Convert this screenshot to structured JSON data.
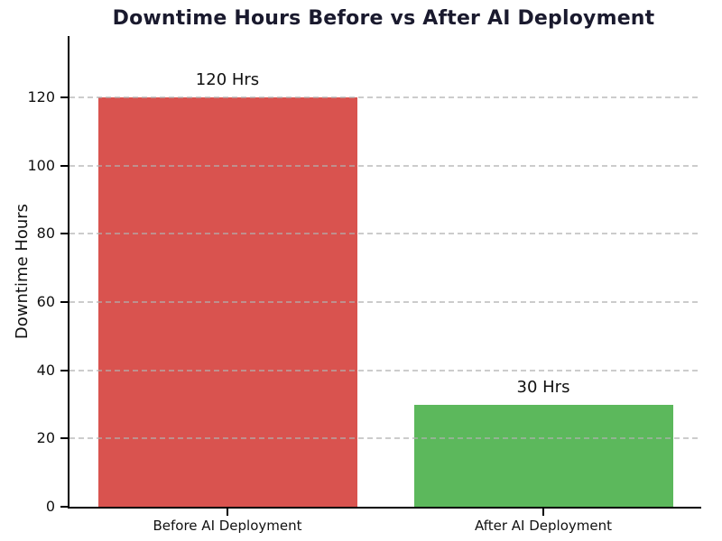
{
  "chart_data": {
    "type": "bar",
    "title": "Downtime Hours Before vs After AI Deployment",
    "categories": [
      "Before AI Deployment",
      "After AI Deployment"
    ],
    "values": [
      120,
      30
    ],
    "value_labels": [
      "120 Hrs",
      "30 Hrs"
    ],
    "bar_colors": [
      "#d9534f",
      "#5cb85c"
    ],
    "xlabel": "",
    "ylabel": "Downtime Hours",
    "ylim": [
      0,
      138
    ],
    "yticks": [
      0,
      20,
      40,
      60,
      80,
      100,
      120
    ],
    "grid": "horizontal dashed gridlines drawn over bars",
    "legend": "none",
    "title_color": "#1a1a2e",
    "axis_color": "#000000",
    "grid_color": "#b0b0b0",
    "background_color": "#ffffff",
    "bar_width_fraction": 0.82
  }
}
